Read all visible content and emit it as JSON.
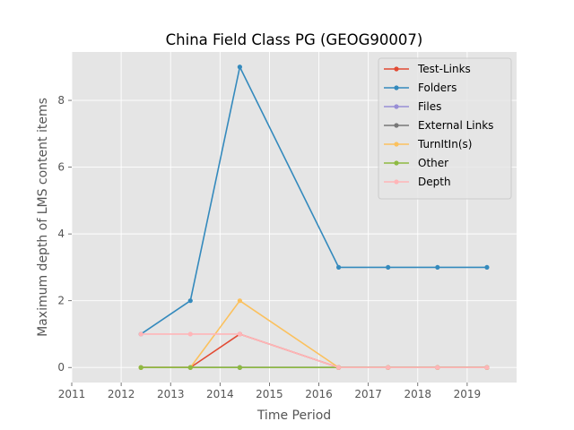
{
  "chart_data": {
    "type": "line",
    "title": "China Field Class PG (GEOG90007)",
    "xlabel": "Time Period",
    "ylabel": "Maximum depth of LMS content items",
    "xlim": [
      2011,
      2020
    ],
    "ylim": [
      -0.45,
      9.45
    ],
    "xticks": [
      2011,
      2012,
      2013,
      2014,
      2015,
      2016,
      2017,
      2018,
      2019
    ],
    "yticks": [
      0,
      2,
      4,
      6,
      8
    ],
    "grid": true,
    "legend_position": "top-right",
    "x": [
      2012.4,
      2013.4,
      2014.4,
      2016.4,
      2017.4,
      2018.4,
      2019.4
    ],
    "series": [
      {
        "name": "Test-Links",
        "color": "#E24A33",
        "values": [
          0,
          0,
          1,
          0,
          0,
          0,
          0
        ]
      },
      {
        "name": "Folders",
        "color": "#348ABD",
        "values": [
          1,
          2,
          9,
          3,
          3,
          3,
          3
        ]
      },
      {
        "name": "Files",
        "color": "#988ED5",
        "values": [
          0,
          0,
          0,
          0,
          0,
          0,
          0
        ]
      },
      {
        "name": "External Links",
        "color": "#777777",
        "values": [
          0,
          0,
          0,
          0,
          0,
          0,
          0
        ]
      },
      {
        "name": "TurnItIn(s)",
        "color": "#FBC15E",
        "values": [
          0,
          0,
          2,
          0,
          0,
          0,
          0
        ]
      },
      {
        "name": "Other",
        "color": "#8EBA42",
        "values": [
          0,
          0,
          0,
          0,
          0,
          0,
          0
        ]
      },
      {
        "name": "Depth",
        "color": "#FFB5B8",
        "values": [
          1,
          1,
          1,
          0,
          0,
          0,
          0
        ]
      }
    ]
  }
}
